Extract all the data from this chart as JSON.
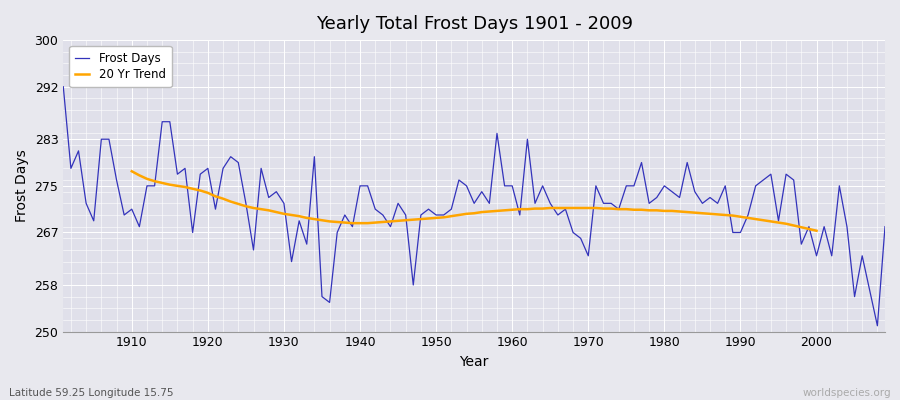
{
  "title": "Yearly Total Frost Days 1901 - 2009",
  "xlabel": "Year",
  "ylabel": "Frost Days",
  "lat_lon_label": "Latitude 59.25 Longitude 15.75",
  "watermark": "worldspecies.org",
  "ylim": [
    250,
    300
  ],
  "yticks": [
    250,
    258,
    267,
    275,
    283,
    292,
    300
  ],
  "xlim": [
    1901,
    2009
  ],
  "xticks": [
    1910,
    1920,
    1930,
    1940,
    1950,
    1960,
    1970,
    1980,
    1990,
    2000
  ],
  "fig_facecolor": "#e8e8ee",
  "ax_facecolor": "#e0e0ea",
  "grid_color": "#ffffff",
  "line_color_frost": "#3333bb",
  "line_color_trend": "#ffa500",
  "years": [
    1901,
    1902,
    1903,
    1904,
    1905,
    1906,
    1907,
    1908,
    1909,
    1910,
    1911,
    1912,
    1913,
    1914,
    1915,
    1916,
    1917,
    1918,
    1919,
    1920,
    1921,
    1922,
    1923,
    1924,
    1925,
    1926,
    1927,
    1928,
    1929,
    1930,
    1931,
    1932,
    1933,
    1934,
    1935,
    1936,
    1937,
    1938,
    1939,
    1940,
    1941,
    1942,
    1943,
    1944,
    1945,
    1946,
    1947,
    1948,
    1949,
    1950,
    1951,
    1952,
    1953,
    1954,
    1955,
    1956,
    1957,
    1958,
    1959,
    1960,
    1961,
    1962,
    1963,
    1964,
    1965,
    1966,
    1967,
    1968,
    1969,
    1970,
    1971,
    1972,
    1973,
    1974,
    1975,
    1976,
    1977,
    1978,
    1979,
    1980,
    1981,
    1982,
    1983,
    1984,
    1985,
    1986,
    1987,
    1988,
    1989,
    1990,
    1991,
    1992,
    1993,
    1994,
    1995,
    1996,
    1997,
    1998,
    1999,
    2000,
    2001,
    2002,
    2003,
    2004,
    2005,
    2006,
    2007,
    2008,
    2009
  ],
  "frost_days": [
    292,
    278,
    281,
    272,
    269,
    283,
    283,
    276,
    270,
    271,
    268,
    275,
    275,
    286,
    286,
    277,
    278,
    267,
    277,
    278,
    271,
    278,
    280,
    279,
    272,
    264,
    278,
    273,
    274,
    272,
    262,
    269,
    265,
    280,
    256,
    255,
    267,
    270,
    268,
    275,
    275,
    271,
    270,
    268,
    272,
    270,
    258,
    270,
    271,
    270,
    270,
    271,
    276,
    275,
    272,
    274,
    272,
    284,
    275,
    275,
    270,
    283,
    272,
    275,
    272,
    270,
    271,
    267,
    266,
    263,
    275,
    272,
    272,
    271,
    275,
    275,
    279,
    272,
    273,
    275,
    274,
    273,
    279,
    274,
    272,
    273,
    272,
    275,
    267,
    267,
    270,
    275,
    276,
    277,
    269,
    277,
    276,
    265,
    268,
    263,
    268,
    263,
    275,
    268,
    256,
    263,
    257,
    251,
    268
  ],
  "trend_years": [
    1910,
    1911,
    1912,
    1913,
    1914,
    1915,
    1916,
    1917,
    1918,
    1919,
    1920,
    1921,
    1922,
    1923,
    1924,
    1925,
    1926,
    1927,
    1928,
    1929,
    1930,
    1931,
    1932,
    1933,
    1934,
    1935,
    1936,
    1937,
    1938,
    1939,
    1940,
    1941,
    1942,
    1943,
    1944,
    1945,
    1946,
    1947,
    1948,
    1949,
    1950,
    1951,
    1952,
    1953,
    1954,
    1955,
    1956,
    1957,
    1958,
    1959,
    1960,
    1961,
    1962,
    1963,
    1964,
    1965,
    1966,
    1967,
    1968,
    1969,
    1970,
    1971,
    1972,
    1973,
    1974,
    1975,
    1976,
    1977,
    1978,
    1979,
    1980,
    1981,
    1982,
    1983,
    1984,
    1985,
    1986,
    1987,
    1988,
    1989,
    1990,
    1991,
    1992,
    1993,
    1994,
    1995,
    1996,
    1997,
    1998,
    1999,
    2000
  ],
  "trend_values": [
    277.5,
    276.8,
    276.2,
    275.8,
    275.5,
    275.2,
    275.0,
    274.8,
    274.5,
    274.2,
    273.8,
    273.2,
    272.8,
    272.3,
    271.9,
    271.5,
    271.2,
    271.0,
    270.8,
    270.5,
    270.2,
    270.0,
    269.8,
    269.5,
    269.3,
    269.1,
    268.9,
    268.8,
    268.7,
    268.6,
    268.6,
    268.6,
    268.7,
    268.8,
    268.9,
    269.0,
    269.1,
    269.2,
    269.3,
    269.4,
    269.5,
    269.6,
    269.8,
    270.0,
    270.2,
    270.3,
    270.5,
    270.6,
    270.7,
    270.8,
    270.9,
    271.0,
    271.0,
    271.1,
    271.1,
    271.2,
    271.2,
    271.2,
    271.2,
    271.2,
    271.2,
    271.2,
    271.1,
    271.1,
    271.0,
    271.0,
    270.9,
    270.9,
    270.8,
    270.8,
    270.7,
    270.7,
    270.6,
    270.5,
    270.4,
    270.3,
    270.2,
    270.1,
    270.0,
    269.9,
    269.7,
    269.5,
    269.3,
    269.1,
    268.9,
    268.7,
    268.5,
    268.2,
    267.9,
    267.6,
    267.3
  ]
}
